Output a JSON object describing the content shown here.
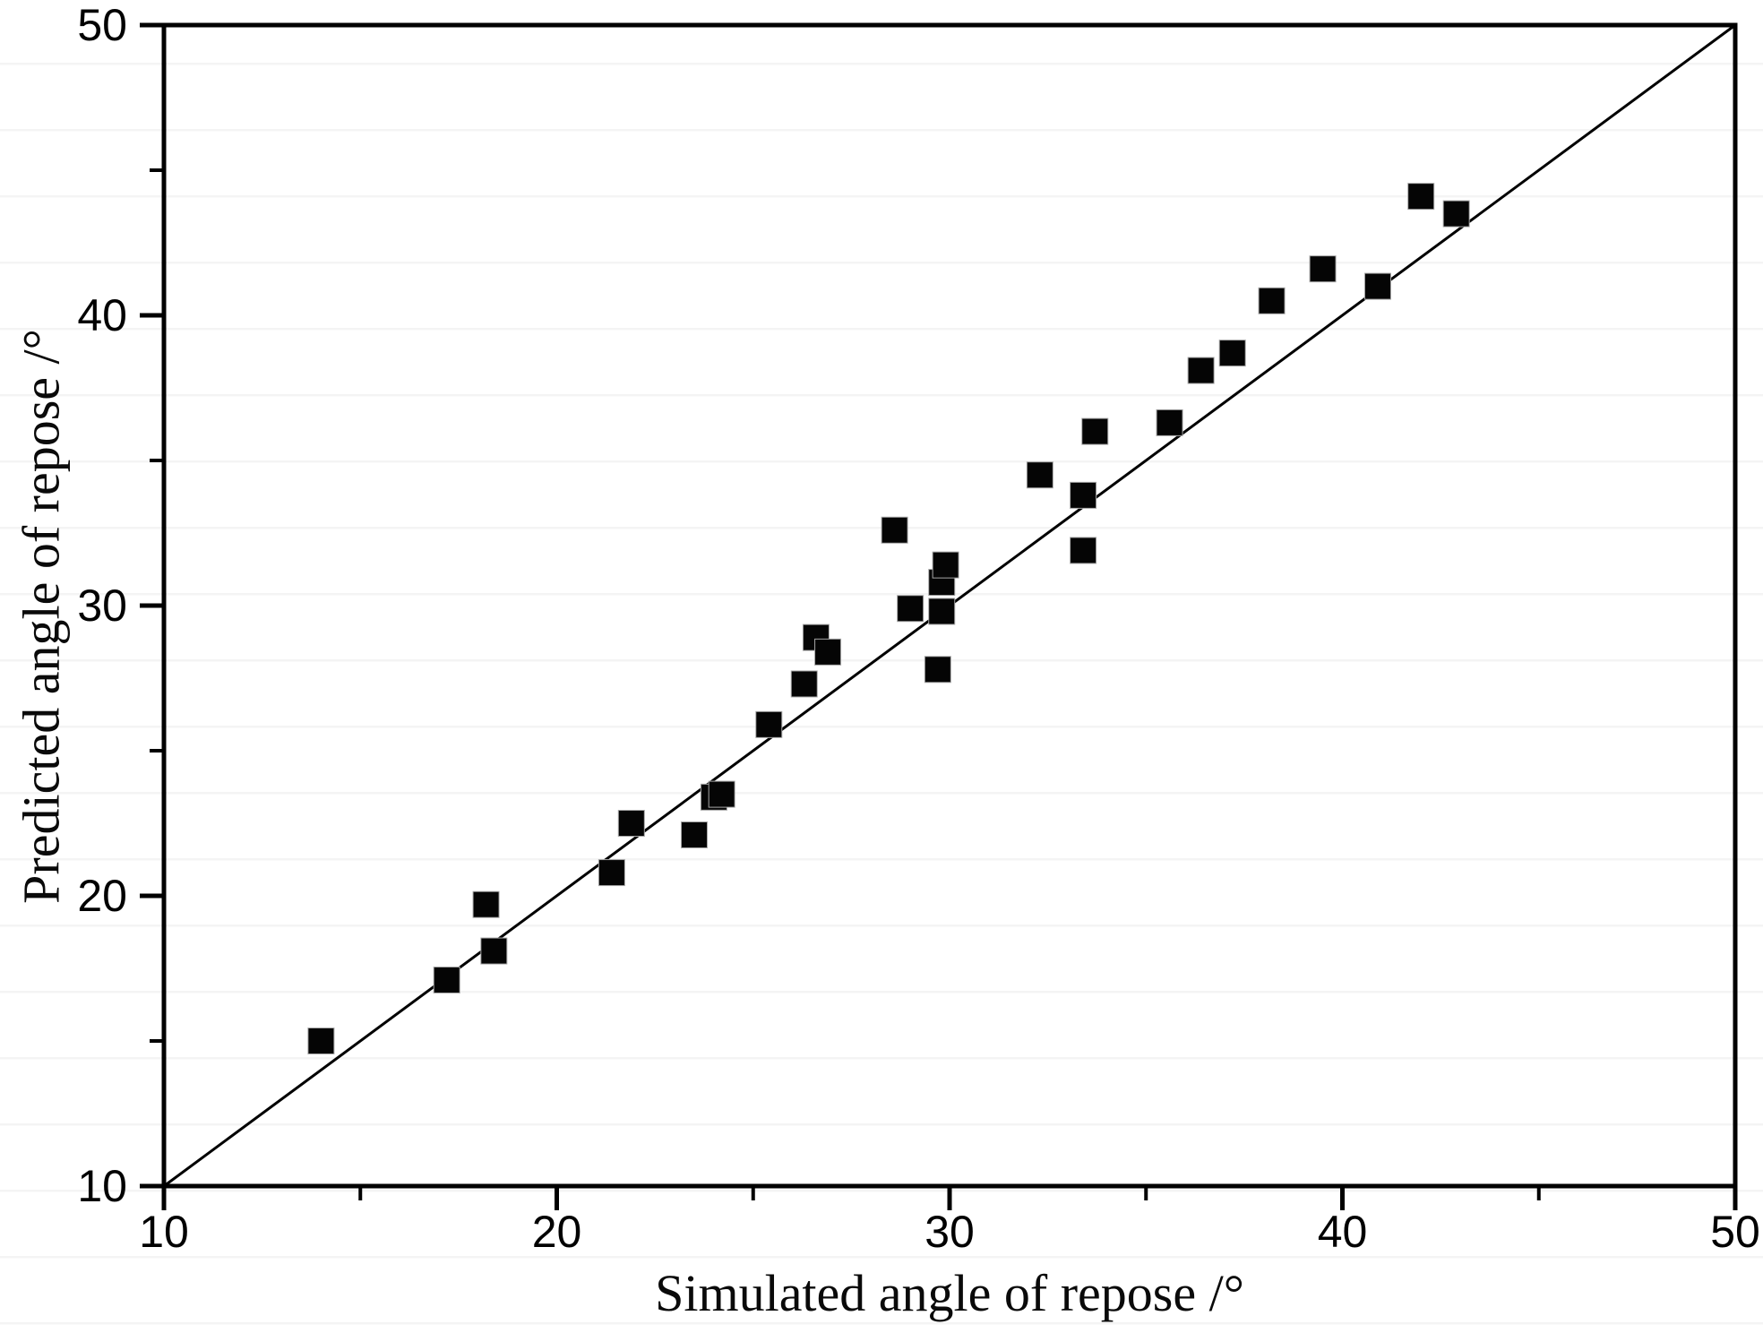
{
  "chart_data": {
    "type": "scatter",
    "title": "",
    "xlabel": "Simulated angle of repose /°",
    "ylabel": "Predicted angle of repose /°",
    "xlim": [
      10,
      50
    ],
    "ylim": [
      10,
      50
    ],
    "x_major_ticks": [
      10,
      20,
      30,
      40,
      50
    ],
    "x_minor_ticks": [
      15,
      25,
      35,
      45
    ],
    "y_major_ticks": [
      10,
      20,
      30,
      40,
      50
    ],
    "y_minor_ticks": [
      15,
      25,
      35,
      45
    ],
    "grid": false,
    "legend": null,
    "marker": "square",
    "colors": {
      "marker_fill": "#050505",
      "marker_edge": "#a6a6a6",
      "axis": "#000000",
      "reference_line": "#000000",
      "background": "#ffffff"
    },
    "reference_line": {
      "from": [
        10,
        10
      ],
      "to": [
        50,
        50
      ]
    },
    "series": [
      {
        "name": "predicted-vs-simulated",
        "points": [
          [
            14.0,
            15.0
          ],
          [
            17.2,
            17.1
          ],
          [
            18.2,
            19.7
          ],
          [
            18.4,
            18.1
          ],
          [
            21.4,
            20.8
          ],
          [
            21.9,
            22.5
          ],
          [
            23.5,
            22.1
          ],
          [
            24.0,
            23.4
          ],
          [
            24.2,
            23.5
          ],
          [
            25.4,
            25.9
          ],
          [
            26.3,
            27.3
          ],
          [
            26.6,
            28.9
          ],
          [
            26.9,
            28.4
          ],
          [
            28.6,
            32.6
          ],
          [
            29.0,
            29.9
          ],
          [
            29.7,
            27.8
          ],
          [
            29.8,
            29.8
          ],
          [
            29.8,
            30.8
          ],
          [
            29.9,
            31.4
          ],
          [
            32.3,
            34.5
          ],
          [
            33.4,
            31.9
          ],
          [
            33.4,
            33.8
          ],
          [
            33.7,
            36.0
          ],
          [
            35.6,
            36.3
          ],
          [
            36.4,
            38.1
          ],
          [
            37.2,
            38.7
          ],
          [
            38.2,
            40.5
          ],
          [
            39.5,
            41.6
          ],
          [
            40.9,
            41.0
          ],
          [
            42.0,
            44.1
          ],
          [
            42.9,
            43.5
          ]
        ]
      }
    ]
  }
}
